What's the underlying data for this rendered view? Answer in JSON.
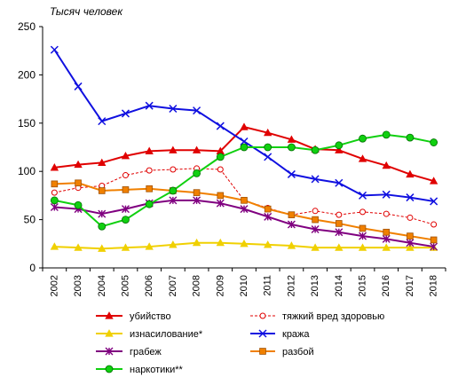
{
  "chart_data": {
    "type": "line",
    "units_label": "Тысяч человек",
    "x": [
      "2002",
      "2003",
      "2004",
      "2005",
      "2006",
      "2007",
      "2008",
      "2009",
      "2010",
      "2011",
      "2012",
      "2013",
      "2014",
      "2015",
      "2016",
      "2017",
      "2018"
    ],
    "ylim": [
      0,
      250
    ],
    "yticks": [
      "0",
      "50",
      "100",
      "150",
      "200",
      "250"
    ],
    "grid": false,
    "legend_position": "bottom",
    "series": [
      {
        "name": "убийство",
        "color": "#e00000",
        "dash": false,
        "marker": "triangle",
        "values": [
          104,
          107,
          109,
          116,
          121,
          122,
          122,
          121,
          146,
          140,
          133,
          123,
          122,
          113,
          106,
          97,
          90
        ]
      },
      {
        "name": "тяжкий вред здоровью",
        "color": "#e00000",
        "dash": true,
        "marker": "circle-open",
        "values": [
          78,
          83,
          85,
          96,
          101,
          102,
          103,
          102,
          70,
          62,
          55,
          59,
          55,
          58,
          56,
          52,
          45
        ]
      },
      {
        "name": "изнасилование*",
        "color": "#f0d000",
        "dash": false,
        "marker": "triangle",
        "values": [
          22,
          21,
          20,
          21,
          22,
          24,
          26,
          26,
          25,
          24,
          23,
          21,
          21,
          21,
          21,
          21,
          21
        ]
      },
      {
        "name": "кража",
        "color": "#1010e0",
        "dash": false,
        "marker": "x",
        "values": [
          226,
          188,
          152,
          160,
          168,
          165,
          163,
          147,
          131,
          115,
          97,
          92,
          88,
          75,
          76,
          73,
          69
        ]
      },
      {
        "name": "грабеж",
        "color": "#800080",
        "dash": false,
        "marker": "star",
        "values": [
          63,
          61,
          56,
          61,
          67,
          70,
          70,
          67,
          61,
          53,
          45,
          40,
          37,
          33,
          30,
          26,
          22
        ]
      },
      {
        "name": "разбой",
        "color": "#f08000",
        "dash": false,
        "marker": "square",
        "values": [
          87,
          88,
          80,
          81,
          82,
          80,
          78,
          75,
          70,
          61,
          55,
          50,
          46,
          41,
          37,
          33,
          29
        ]
      },
      {
        "name": "наркотики**",
        "color": "#10d010",
        "dash": false,
        "marker": "circle",
        "values": [
          70,
          65,
          43,
          50,
          66,
          80,
          98,
          115,
          125,
          125,
          125,
          122,
          127,
          134,
          138,
          135,
          130
        ]
      }
    ]
  }
}
